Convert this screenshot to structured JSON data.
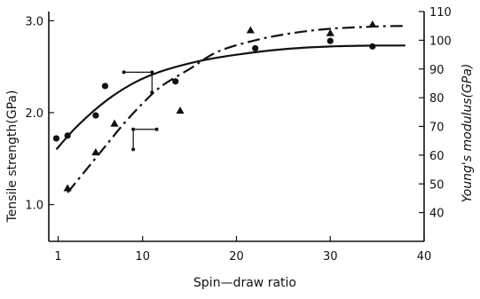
{
  "chart_data": {
    "type": "scatter",
    "title": "",
    "xlabel": "Spin—draw ratio",
    "ylabel_left": "Tensile strength(GPa)",
    "ylabel_right": "Young's modulus(GPa)",
    "xlim": [
      0,
      40
    ],
    "ylim_left": [
      0.6,
      3.1
    ],
    "ylim_right": [
      30,
      110
    ],
    "x_ticks": [
      "1",
      "10",
      "20",
      "30",
      "40"
    ],
    "y_left_ticks": [
      "1.0",
      "2.0",
      "3.0"
    ],
    "y_right_ticks": [
      "40",
      "50",
      "60",
      "70",
      "80",
      "90",
      "100",
      "110"
    ],
    "grid": false,
    "legend": "none",
    "series": [
      {
        "axis": "left",
        "marker": "circle",
        "line": "solid",
        "points": [
          {
            "x": 0.8,
            "y": 1.72
          },
          {
            "x": 2.0,
            "y": 1.75
          },
          {
            "x": 5.0,
            "y": 1.97
          },
          {
            "x": 6.0,
            "y": 2.29
          },
          {
            "x": 13.5,
            "y": 2.34
          },
          {
            "x": 22.0,
            "y": 2.7
          },
          {
            "x": 30.0,
            "y": 2.78
          },
          {
            "x": 34.5,
            "y": 2.72
          }
        ],
        "fit": [
          {
            "x": 0.8,
            "y": 1.6
          },
          {
            "x": 3,
            "y": 1.85
          },
          {
            "x": 6,
            "y": 2.12
          },
          {
            "x": 9,
            "y": 2.32
          },
          {
            "x": 12,
            "y": 2.45
          },
          {
            "x": 16,
            "y": 2.56
          },
          {
            "x": 20,
            "y": 2.63
          },
          {
            "x": 25,
            "y": 2.69
          },
          {
            "x": 30,
            "y": 2.72
          },
          {
            "x": 35,
            "y": 2.73
          },
          {
            "x": 38,
            "y": 2.73
          }
        ]
      },
      {
        "axis": "right",
        "marker": "triangle",
        "line": "dash-dot",
        "points": [
          {
            "x": 2.0,
            "y": 48.5
          },
          {
            "x": 5.0,
            "y": 61
          },
          {
            "x": 7.0,
            "y": 71
          },
          {
            "x": 14.0,
            "y": 75.5
          },
          {
            "x": 21.5,
            "y": 103.5
          },
          {
            "x": 30.0,
            "y": 102.5
          },
          {
            "x": 34.5,
            "y": 105.5
          }
        ],
        "fit": [
          {
            "x": 2,
            "y": 47
          },
          {
            "x": 4,
            "y": 55
          },
          {
            "x": 6,
            "y": 63
          },
          {
            "x": 8,
            "y": 71
          },
          {
            "x": 10,
            "y": 78
          },
          {
            "x": 12,
            "y": 84
          },
          {
            "x": 15,
            "y": 90
          },
          {
            "x": 18,
            "y": 96
          },
          {
            "x": 22,
            "y": 100
          },
          {
            "x": 26,
            "y": 102.5
          },
          {
            "x": 30,
            "y": 104
          },
          {
            "x": 35,
            "y": 104.8
          },
          {
            "x": 38,
            "y": 105
          }
        ]
      }
    ],
    "error_bars": [
      {
        "axis": "left",
        "x": 11.0,
        "y": 2.44,
        "x_err": [
          8.0,
          11.0
        ],
        "y_err": [
          2.22,
          2.44
        ]
      },
      {
        "axis": "right",
        "x": 9.0,
        "y": 69.0,
        "x_err": [
          9.0,
          11.5
        ],
        "y_err": [
          62.0,
          69.0
        ]
      }
    ]
  }
}
